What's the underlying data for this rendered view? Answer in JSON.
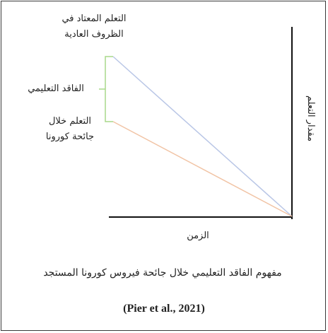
{
  "diagram": {
    "labels": {
      "normal_line1": "التعلم المعتاد في",
      "normal_line2": "الظروف العادية",
      "learning_loss": "الفاقد التعليمي",
      "covid_line1": "التعلم خلال",
      "covid_line2": "جائحة كورونا",
      "x_axis": "الزمن",
      "y_axis": "مقدار التعلم"
    },
    "caption": "مفهوم الفاقد التعليمي خلال جائحة فيروس كورونا المستجد",
    "citation": "(Pier et al., 2021)",
    "colors": {
      "normal_line": "#b9c6e6",
      "covid_line": "#f1c3a4",
      "bracket": "#a9d98a",
      "axis": "#111111",
      "border": "#3a3a3a"
    }
  }
}
